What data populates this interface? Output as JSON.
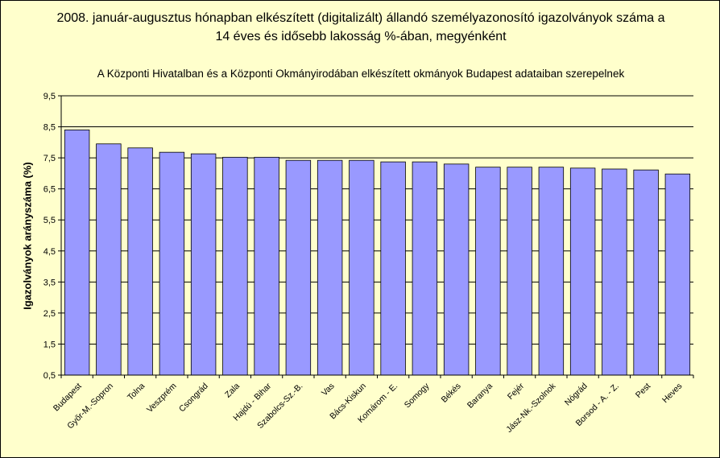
{
  "chart_data": {
    "type": "bar",
    "title_line1": "2008. január-augusztus hónapban elkészített (digitalizált) állandó személyazonosító igazolványok száma a",
    "title_line2": "14 éves és idősebb lakosság %-ában, megyénként",
    "subtitle": "A Központi Hivatalban és a Központi Okmányirodában elkészített okmányok Budapest adataiban szerepelnek",
    "ylabel": "Igazolványok arányszáma (%)",
    "xlabel": "",
    "ylim": [
      0.5,
      9.5
    ],
    "yticks": [
      "0,5",
      "1,5",
      "2,5",
      "3,5",
      "4,5",
      "5,5",
      "6,5",
      "7,5",
      "8,5",
      "9,5"
    ],
    "categories": [
      "Budapest",
      "Győr-M.-Sopron",
      "Tolna",
      "Veszprém",
      "Csongrád",
      "Zala",
      "Hajdú - Bihar",
      "Szabolcs-Sz.-B.",
      "Vas",
      "Bács-Kiskun",
      "Komárom - E.",
      "Somogy",
      "Békés",
      "Baranya",
      "Fejér",
      "Jász-Nk.-Szolnok",
      "Nógrád",
      "Borsod - A. - Z.",
      "Pest",
      "Heves"
    ],
    "values": [
      8.4,
      7.95,
      7.82,
      7.68,
      7.63,
      7.52,
      7.52,
      7.42,
      7.42,
      7.42,
      7.37,
      7.37,
      7.3,
      7.2,
      7.2,
      7.2,
      7.17,
      7.14,
      7.11,
      6.98
    ],
    "bar_color": "#9999ff",
    "bar_edge": "#000000",
    "plot_background": "#ffffcc",
    "grid": true,
    "legend": "none"
  }
}
